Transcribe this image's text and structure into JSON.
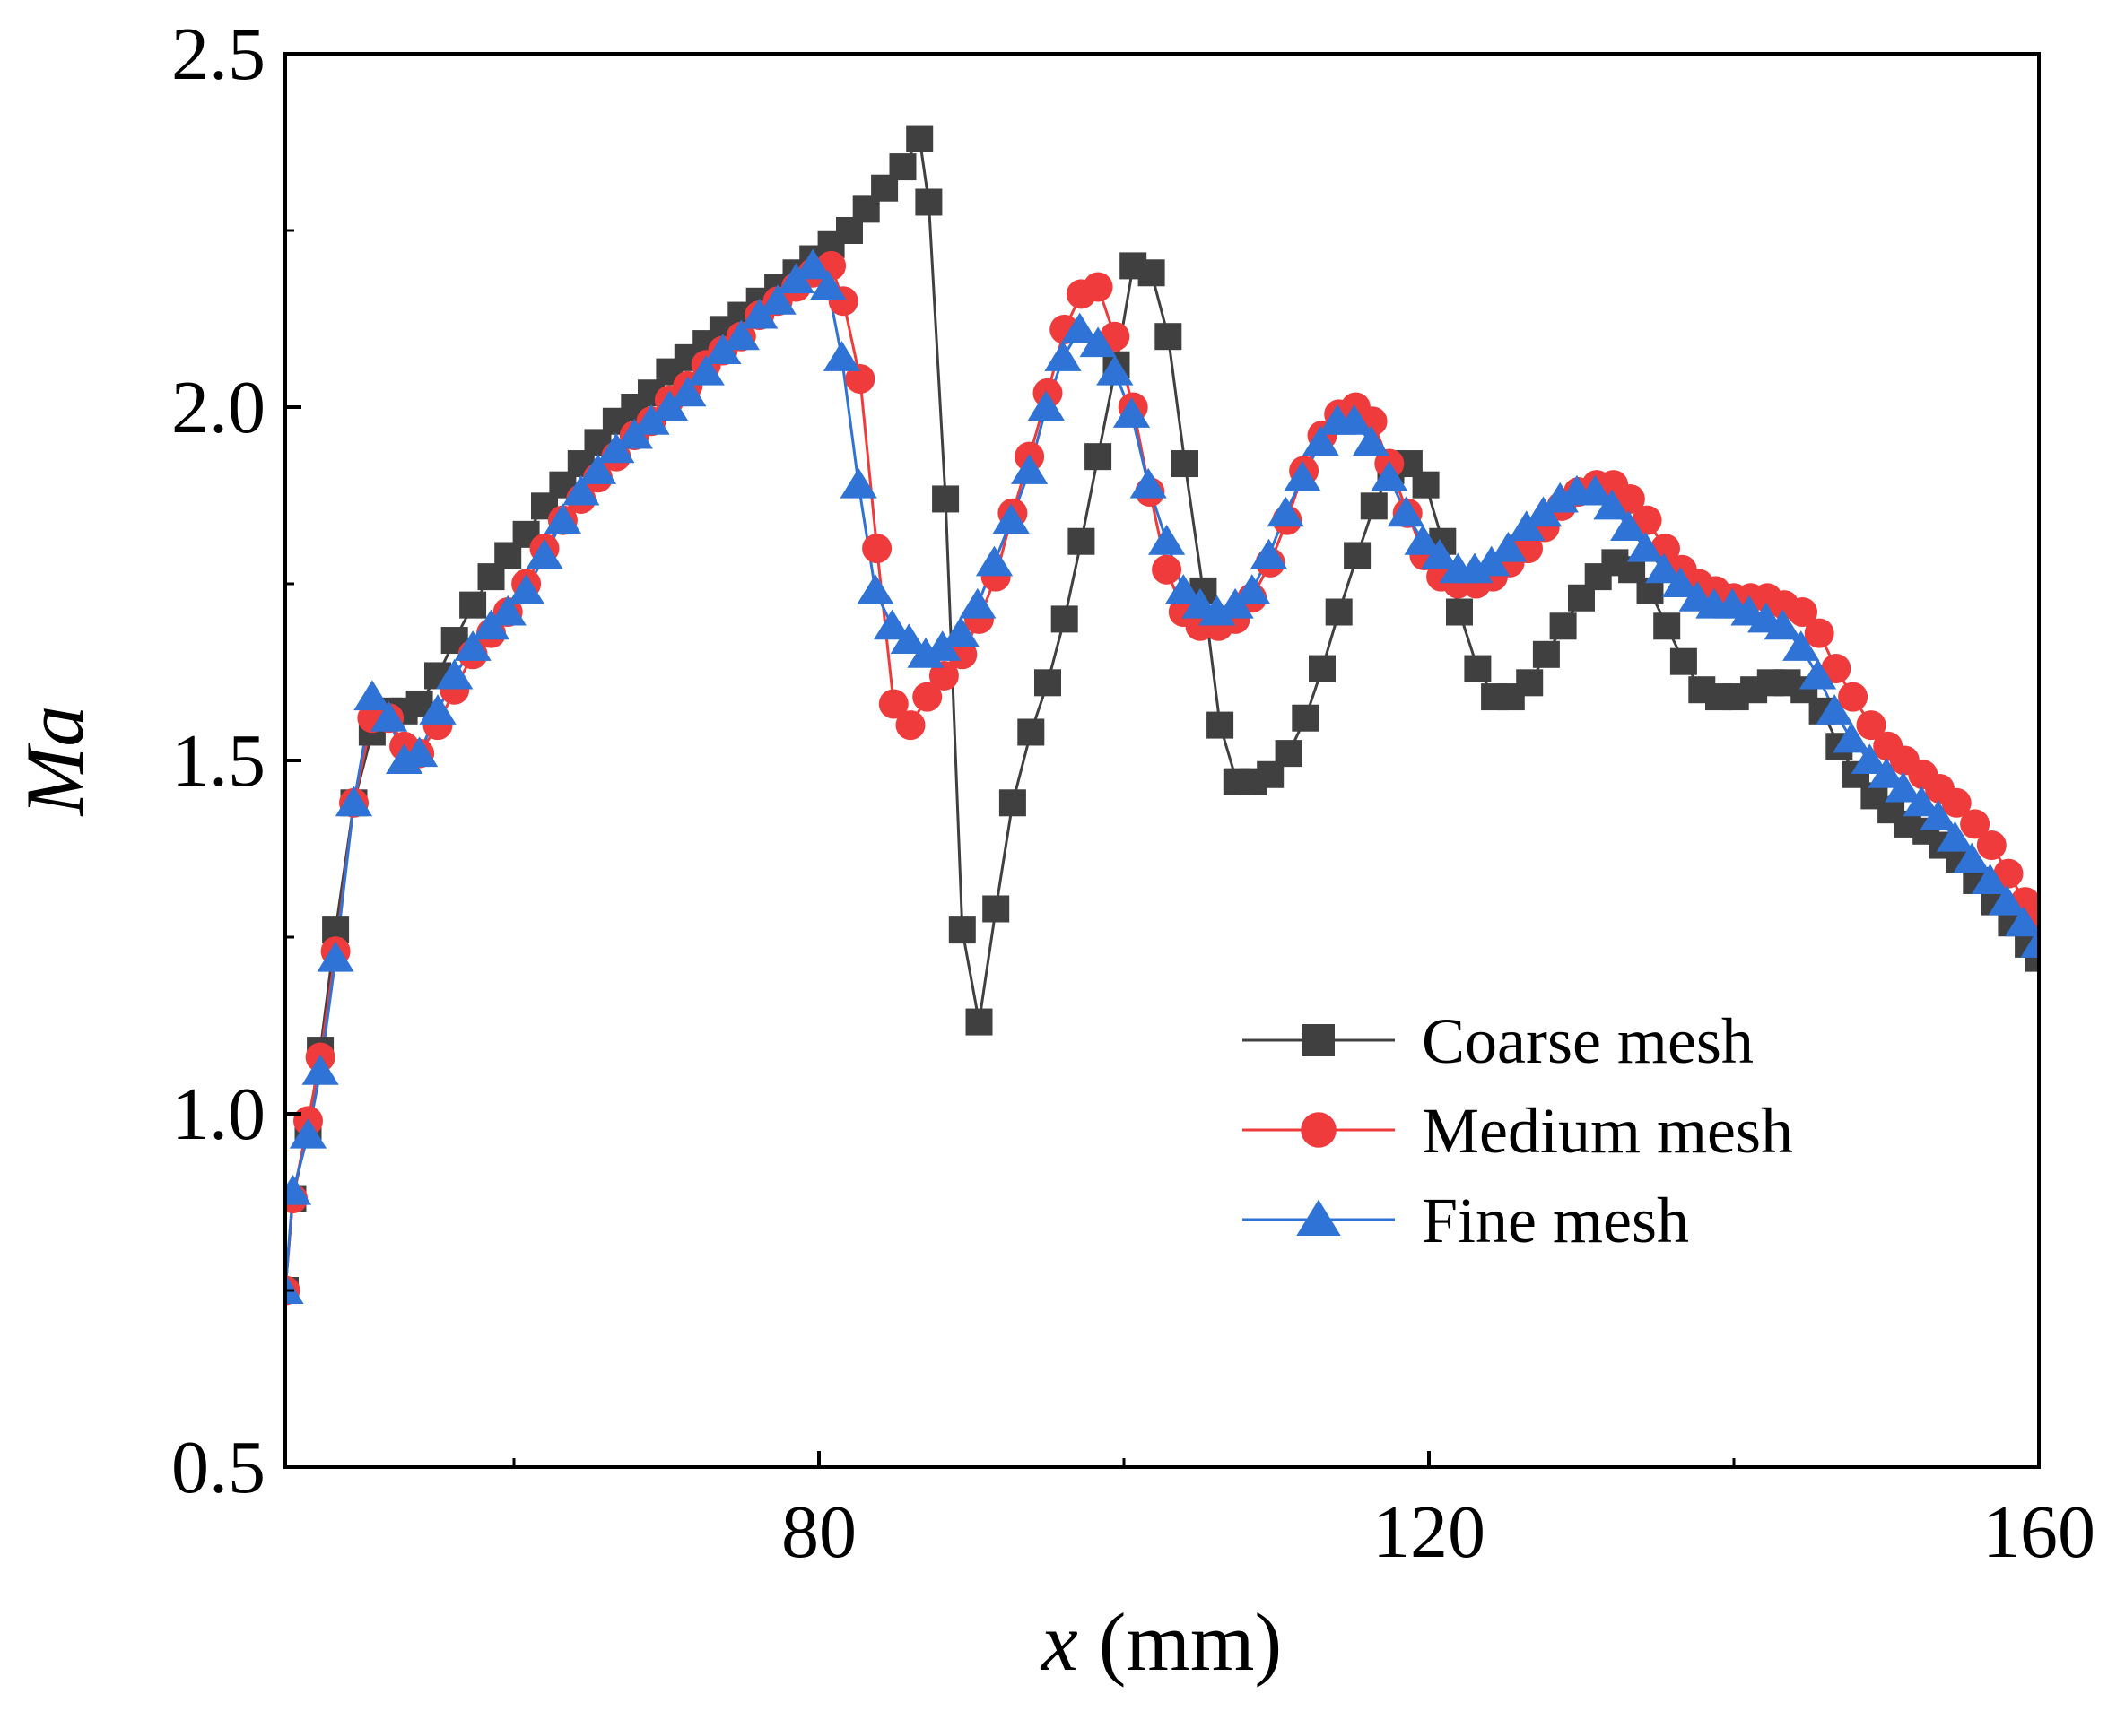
{
  "chart_data": {
    "type": "line",
    "xlabel_symbol": "x",
    "xlabel_unit": " (mm)",
    "ylabel": "Ma",
    "xlim": [
      45,
      160
    ],
    "ylim": [
      0.5,
      2.5
    ],
    "x_ticks": [
      80,
      120,
      160
    ],
    "x_minor_ticks": [
      60,
      100,
      140
    ],
    "y_ticks": [
      0.5,
      1.0,
      1.5,
      2.0,
      2.5
    ],
    "y_tick_labels": [
      "0.5",
      "1.0",
      "1.5",
      "2.0",
      "2.5"
    ],
    "legend_position": "lower-right",
    "grid": false,
    "series": [
      {
        "name": "Coarse mesh",
        "color": "#404040",
        "marker": "square",
        "points": [
          [
            45,
            0.75
          ],
          [
            45.5,
            0.88
          ],
          [
            46.5,
            0.98
          ],
          [
            47.3,
            1.09
          ],
          [
            48.3,
            1.26
          ],
          [
            49.5,
            1.44
          ],
          [
            50.7,
            1.54
          ],
          [
            51.8,
            1.57
          ],
          [
            52.8,
            1.57
          ],
          [
            53.8,
            1.58
          ],
          [
            55,
            1.62
          ],
          [
            56.1,
            1.67
          ],
          [
            57.3,
            1.72
          ],
          [
            58.5,
            1.76
          ],
          [
            59.6,
            1.79
          ],
          [
            60.8,
            1.82
          ],
          [
            62,
            1.86
          ],
          [
            63.2,
            1.89
          ],
          [
            64.4,
            1.92
          ],
          [
            65.5,
            1.95
          ],
          [
            66.7,
            1.98
          ],
          [
            67.9,
            2.0
          ],
          [
            69,
            2.02
          ],
          [
            70.2,
            2.05
          ],
          [
            71.4,
            2.07
          ],
          [
            72.6,
            2.09
          ],
          [
            73.7,
            2.11
          ],
          [
            74.9,
            2.13
          ],
          [
            76.1,
            2.15
          ],
          [
            77.3,
            2.17
          ],
          [
            78.5,
            2.19
          ],
          [
            79.6,
            2.21
          ],
          [
            80.8,
            2.23
          ],
          [
            82,
            2.25
          ],
          [
            83.1,
            2.28
          ],
          [
            84.3,
            2.31
          ],
          [
            85.5,
            2.34
          ],
          [
            86.6,
            2.38
          ],
          [
            87.2,
            2.29
          ],
          [
            88.3,
            1.87
          ],
          [
            89.4,
            1.26
          ],
          [
            90.5,
            1.13
          ],
          [
            91.6,
            1.29
          ],
          [
            92.7,
            1.44
          ],
          [
            93.9,
            1.54
          ],
          [
            95,
            1.61
          ],
          [
            96.1,
            1.7
          ],
          [
            97.2,
            1.81
          ],
          [
            98.3,
            1.93
          ],
          [
            99.5,
            2.06
          ],
          [
            100.6,
            2.2
          ],
          [
            101.8,
            2.19
          ],
          [
            102.9,
            2.1
          ],
          [
            104,
            1.92
          ],
          [
            105.2,
            1.74
          ],
          [
            106.3,
            1.55
          ],
          [
            107.4,
            1.47
          ],
          [
            108.5,
            1.47
          ],
          [
            109.6,
            1.48
          ],
          [
            110.8,
            1.51
          ],
          [
            111.9,
            1.56
          ],
          [
            113,
            1.63
          ],
          [
            114.1,
            1.71
          ],
          [
            115.3,
            1.79
          ],
          [
            116.4,
            1.86
          ],
          [
            117.5,
            1.91
          ],
          [
            118.7,
            1.92
          ],
          [
            119.8,
            1.89
          ],
          [
            120.9,
            1.81
          ],
          [
            122,
            1.71
          ],
          [
            123.2,
            1.63
          ],
          [
            124.3,
            1.59
          ],
          [
            125.4,
            1.59
          ],
          [
            126.6,
            1.61
          ],
          [
            127.7,
            1.65
          ],
          [
            128.8,
            1.69
          ],
          [
            130,
            1.73
          ],
          [
            131.1,
            1.76
          ],
          [
            132.2,
            1.78
          ],
          [
            133.3,
            1.77
          ],
          [
            134.5,
            1.74
          ],
          [
            135.6,
            1.69
          ],
          [
            136.7,
            1.64
          ],
          [
            137.9,
            1.6
          ],
          [
            139,
            1.59
          ],
          [
            140.1,
            1.59
          ],
          [
            141.3,
            1.6
          ],
          [
            142.4,
            1.61
          ],
          [
            143.5,
            1.61
          ],
          [
            144.6,
            1.6
          ],
          [
            145.8,
            1.57
          ],
          [
            146.9,
            1.52
          ],
          [
            148,
            1.48
          ],
          [
            149.2,
            1.45
          ],
          [
            150.3,
            1.43
          ],
          [
            151.4,
            1.41
          ],
          [
            152.6,
            1.4
          ],
          [
            153.7,
            1.38
          ],
          [
            154.8,
            1.36
          ],
          [
            155.9,
            1.33
          ],
          [
            157.1,
            1.3
          ],
          [
            158.2,
            1.27
          ],
          [
            159.3,
            1.24
          ],
          [
            160,
            1.22
          ]
        ]
      },
      {
        "name": "Medium mesh",
        "color": "#ef3b3b",
        "marker": "circle",
        "points": [
          [
            45,
            0.75
          ],
          [
            45.5,
            0.88
          ],
          [
            46.5,
            0.99
          ],
          [
            47.3,
            1.08
          ],
          [
            48.3,
            1.23
          ],
          [
            49.5,
            1.44
          ],
          [
            50.7,
            1.56
          ],
          [
            51.8,
            1.56
          ],
          [
            52.8,
            1.52
          ],
          [
            53.8,
            1.51
          ],
          [
            55,
            1.55
          ],
          [
            56.1,
            1.6
          ],
          [
            57.3,
            1.65
          ],
          [
            58.5,
            1.68
          ],
          [
            59.6,
            1.71
          ],
          [
            60.8,
            1.75
          ],
          [
            62,
            1.8
          ],
          [
            63.2,
            1.84
          ],
          [
            64.4,
            1.87
          ],
          [
            65.5,
            1.9
          ],
          [
            66.7,
            1.93
          ],
          [
            67.9,
            1.96
          ],
          [
            69,
            1.98
          ],
          [
            70.2,
            2.01
          ],
          [
            71.4,
            2.03
          ],
          [
            72.6,
            2.06
          ],
          [
            73.7,
            2.08
          ],
          [
            74.9,
            2.1
          ],
          [
            76.1,
            2.13
          ],
          [
            77.3,
            2.15
          ],
          [
            78.5,
            2.17
          ],
          [
            79.6,
            2.19
          ],
          [
            80.8,
            2.2
          ],
          [
            81.6,
            2.15
          ],
          [
            82.7,
            2.04
          ],
          [
            83.8,
            1.8
          ],
          [
            84.9,
            1.58
          ],
          [
            86,
            1.55
          ],
          [
            87.1,
            1.59
          ],
          [
            88.2,
            1.62
          ],
          [
            89.4,
            1.65
          ],
          [
            90.5,
            1.7
          ],
          [
            91.6,
            1.76
          ],
          [
            92.7,
            1.85
          ],
          [
            93.8,
            1.93
          ],
          [
            95,
            2.02
          ],
          [
            96.1,
            2.11
          ],
          [
            97.2,
            2.16
          ],
          [
            98.3,
            2.17
          ],
          [
            99.4,
            2.1
          ],
          [
            100.6,
            2.0
          ],
          [
            101.7,
            1.88
          ],
          [
            102.8,
            1.77
          ],
          [
            103.9,
            1.71
          ],
          [
            105,
            1.69
          ],
          [
            106.2,
            1.69
          ],
          [
            107.3,
            1.7
          ],
          [
            108.4,
            1.73
          ],
          [
            109.6,
            1.78
          ],
          [
            110.7,
            1.84
          ],
          [
            111.8,
            1.91
          ],
          [
            113,
            1.96
          ],
          [
            114.1,
            1.99
          ],
          [
            115.2,
            2.0
          ],
          [
            116.3,
            1.98
          ],
          [
            117.4,
            1.92
          ],
          [
            118.6,
            1.85
          ],
          [
            119.7,
            1.79
          ],
          [
            120.8,
            1.76
          ],
          [
            121.9,
            1.75
          ],
          [
            123.1,
            1.75
          ],
          [
            124.2,
            1.76
          ],
          [
            125.3,
            1.78
          ],
          [
            126.5,
            1.8
          ],
          [
            127.6,
            1.83
          ],
          [
            128.7,
            1.86
          ],
          [
            129.8,
            1.88
          ],
          [
            131,
            1.89
          ],
          [
            132.1,
            1.89
          ],
          [
            133.2,
            1.87
          ],
          [
            134.3,
            1.84
          ],
          [
            135.5,
            1.8
          ],
          [
            136.6,
            1.77
          ],
          [
            137.7,
            1.75
          ],
          [
            138.8,
            1.74
          ],
          [
            140,
            1.73
          ],
          [
            141.1,
            1.73
          ],
          [
            142.2,
            1.73
          ],
          [
            143.3,
            1.72
          ],
          [
            144.5,
            1.71
          ],
          [
            145.6,
            1.68
          ],
          [
            146.7,
            1.63
          ],
          [
            147.8,
            1.59
          ],
          [
            149,
            1.55
          ],
          [
            150.1,
            1.52
          ],
          [
            151.2,
            1.5
          ],
          [
            152.4,
            1.48
          ],
          [
            153.5,
            1.46
          ],
          [
            154.6,
            1.44
          ],
          [
            155.8,
            1.41
          ],
          [
            156.9,
            1.38
          ],
          [
            158,
            1.34
          ],
          [
            159.1,
            1.3
          ],
          [
            160,
            1.27
          ]
        ]
      },
      {
        "name": "Fine mesh",
        "color": "#2f73d6",
        "marker": "triangle",
        "points": [
          [
            45,
            0.75
          ],
          [
            45.5,
            0.89
          ],
          [
            46.5,
            0.97
          ],
          [
            47.3,
            1.06
          ],
          [
            48.3,
            1.22
          ],
          [
            49.5,
            1.44
          ],
          [
            50.7,
            1.59
          ],
          [
            51.8,
            1.56
          ],
          [
            52.8,
            1.5
          ],
          [
            53.8,
            1.51
          ],
          [
            55,
            1.57
          ],
          [
            56.1,
            1.62
          ],
          [
            57.3,
            1.66
          ],
          [
            58.5,
            1.69
          ],
          [
            59.6,
            1.71
          ],
          [
            60.8,
            1.74
          ],
          [
            62,
            1.79
          ],
          [
            63.2,
            1.84
          ],
          [
            64.4,
            1.88
          ],
          [
            65.5,
            1.91
          ],
          [
            66.7,
            1.94
          ],
          [
            67.9,
            1.96
          ],
          [
            69,
            1.98
          ],
          [
            70.2,
            2.0
          ],
          [
            71.4,
            2.02
          ],
          [
            72.6,
            2.05
          ],
          [
            73.7,
            2.08
          ],
          [
            74.9,
            2.1
          ],
          [
            76.1,
            2.13
          ],
          [
            77.3,
            2.15
          ],
          [
            78.5,
            2.18
          ],
          [
            79.6,
            2.2
          ],
          [
            80.6,
            2.17
          ],
          [
            81.5,
            2.07
          ],
          [
            82.6,
            1.89
          ],
          [
            83.7,
            1.74
          ],
          [
            84.8,
            1.69
          ],
          [
            85.9,
            1.67
          ],
          [
            87,
            1.65
          ],
          [
            88.1,
            1.66
          ],
          [
            89.3,
            1.68
          ],
          [
            90.4,
            1.72
          ],
          [
            91.5,
            1.78
          ],
          [
            92.6,
            1.84
          ],
          [
            93.8,
            1.91
          ],
          [
            94.9,
            2.0
          ],
          [
            96,
            2.07
          ],
          [
            97.1,
            2.11
          ],
          [
            98.3,
            2.09
          ],
          [
            99.4,
            2.05
          ],
          [
            100.5,
            1.99
          ],
          [
            101.6,
            1.89
          ],
          [
            102.8,
            1.81
          ],
          [
            103.9,
            1.74
          ],
          [
            105,
            1.72
          ],
          [
            106.1,
            1.71
          ],
          [
            107.3,
            1.72
          ],
          [
            108.4,
            1.74
          ],
          [
            109.5,
            1.79
          ],
          [
            110.6,
            1.85
          ],
          [
            111.7,
            1.9
          ],
          [
            112.9,
            1.95
          ],
          [
            114,
            1.98
          ],
          [
            115.1,
            1.98
          ],
          [
            116.2,
            1.95
          ],
          [
            117.4,
            1.9
          ],
          [
            118.5,
            1.85
          ],
          [
            119.6,
            1.81
          ],
          [
            120.7,
            1.79
          ],
          [
            121.9,
            1.77
          ],
          [
            123,
            1.77
          ],
          [
            124.1,
            1.78
          ],
          [
            125.2,
            1.8
          ],
          [
            126.4,
            1.83
          ],
          [
            127.5,
            1.85
          ],
          [
            128.6,
            1.87
          ],
          [
            129.7,
            1.88
          ],
          [
            130.9,
            1.88
          ],
          [
            132,
            1.86
          ],
          [
            133.1,
            1.83
          ],
          [
            134.2,
            1.8
          ],
          [
            135.4,
            1.77
          ],
          [
            136.5,
            1.75
          ],
          [
            137.6,
            1.73
          ],
          [
            138.7,
            1.72
          ],
          [
            139.9,
            1.72
          ],
          [
            141,
            1.71
          ],
          [
            142.1,
            1.7
          ],
          [
            143.2,
            1.69
          ],
          [
            144.4,
            1.66
          ],
          [
            145.5,
            1.62
          ],
          [
            146.6,
            1.57
          ],
          [
            147.7,
            1.53
          ],
          [
            148.9,
            1.5
          ],
          [
            150,
            1.48
          ],
          [
            151.1,
            1.46
          ],
          [
            152.3,
            1.44
          ],
          [
            153.4,
            1.42
          ],
          [
            154.5,
            1.39
          ],
          [
            155.6,
            1.36
          ],
          [
            156.8,
            1.33
          ],
          [
            157.9,
            1.3
          ],
          [
            159,
            1.27
          ],
          [
            160,
            1.24
          ]
        ]
      }
    ]
  }
}
